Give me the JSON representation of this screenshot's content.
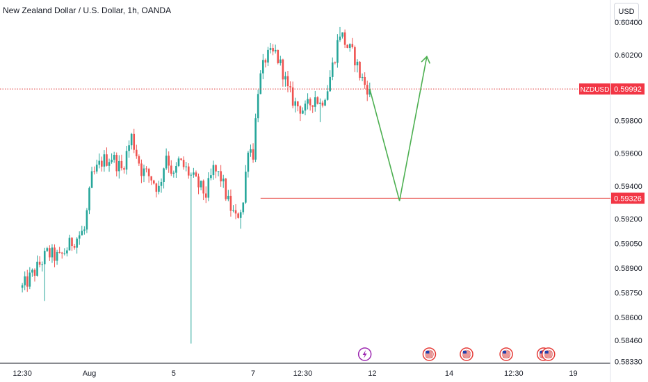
{
  "header": {
    "title": "New Zealand Dollar / U.S. Dollar, 1h, OANDA",
    "currency_button": "USD"
  },
  "colors": {
    "up": "#26a69a",
    "down": "#ef5350",
    "current_line": "#e03c3c",
    "projection": "#4caf50",
    "level_line": "#e53935",
    "event_us": "#e53935",
    "event_lightning": "#9c27b0"
  },
  "chart_data": {
    "type": "candlestick",
    "symbol": "NZDUSD",
    "interval": "1h",
    "source": "OANDA",
    "ylim": [
      0.5832,
      0.6045
    ],
    "y_ticks": [
      "0.60400",
      "0.60200",
      "0.59800",
      "0.59600",
      "0.59400",
      "0.59200",
      "0.59050",
      "0.58900",
      "0.58750",
      "0.58600",
      "0.58460",
      "0.58330"
    ],
    "y_tick_values": [
      0.604,
      0.602,
      0.598,
      0.596,
      0.594,
      0.592,
      0.5905,
      0.589,
      0.5875,
      0.586,
      0.5846,
      0.5833
    ],
    "x_ticks": [
      {
        "label": "12:30",
        "index": 0
      },
      {
        "label": "Aug",
        "index": 27
      },
      {
        "label": "5",
        "index": 61
      },
      {
        "label": "7",
        "index": 93
      },
      {
        "label": "12:30",
        "index": 113
      },
      {
        "label": "12",
        "index": 141
      },
      {
        "label": "14",
        "index": 172
      },
      {
        "label": "12:30",
        "index": 198
      },
      {
        "label": "19",
        "index": 222
      }
    ],
    "x_index_range": [
      -9,
      237
    ],
    "price_path": [
      [
        0,
        0.5878
      ],
      [
        5,
        0.5888
      ],
      [
        10,
        0.5899
      ],
      [
        15,
        0.5896
      ],
      [
        20,
        0.5906
      ],
      [
        25,
        0.5913
      ],
      [
        28,
        0.5945
      ],
      [
        32,
        0.5955
      ],
      [
        36,
        0.5958
      ],
      [
        40,
        0.595
      ],
      [
        44,
        0.597
      ],
      [
        48,
        0.595
      ],
      [
        52,
        0.5945
      ],
      [
        55,
        0.5938
      ],
      [
        58,
        0.596
      ],
      [
        61,
        0.5945
      ],
      [
        63,
        0.5955
      ],
      [
        66,
        0.595
      ],
      [
        70,
        0.5942
      ],
      [
        74,
        0.5935
      ],
      [
        77,
        0.595
      ],
      [
        80,
        0.5945
      ],
      [
        83,
        0.593
      ],
      [
        86,
        0.592
      ],
      [
        89,
        0.593
      ],
      [
        91,
        0.5965
      ],
      [
        93,
        0.596
      ],
      [
        95,
        0.6
      ],
      [
        98,
        0.6018
      ],
      [
        102,
        0.6021
      ],
      [
        105,
        0.601
      ],
      [
        107,
        0.5998
      ],
      [
        110,
        0.599
      ],
      [
        114,
        0.5986
      ],
      [
        118,
        0.5995
      ],
      [
        120,
        0.599
      ],
      [
        123,
        0.6
      ],
      [
        126,
        0.602
      ],
      [
        128,
        0.6034
      ],
      [
        131,
        0.6025
      ],
      [
        134,
        0.6018
      ],
      [
        136,
        0.6008
      ],
      [
        138,
        0.6002
      ],
      [
        140,
        0.5999
      ]
    ],
    "price_extremes": [
      [
        9,
        0.587
      ],
      [
        68,
        0.5852
      ],
      [
        68,
        0.5844
      ],
      [
        88,
        0.5914
      ],
      [
        120,
        0.5979
      ],
      [
        128,
        0.6037
      ]
    ],
    "current_price": {
      "symbol": "NZDUSD",
      "value": 0.59992,
      "label": "0.59992"
    },
    "horizontal_level": {
      "value": 0.59326,
      "label": "0.59326",
      "from_index": 96
    },
    "projection": [
      {
        "index": 140,
        "value": 0.59992
      },
      {
        "index": 152,
        "value": 0.5931
      },
      {
        "index": 163,
        "value": 0.6019
      }
    ],
    "events": [
      {
        "type": "lightning",
        "index": 138
      },
      {
        "type": "us-flag",
        "index": 164
      },
      {
        "type": "us-flag",
        "index": 179
      },
      {
        "type": "us-flag",
        "index": 195
      },
      {
        "type": "us-flag",
        "index": 210
      },
      {
        "type": "us-flag",
        "index": 212
      }
    ]
  }
}
